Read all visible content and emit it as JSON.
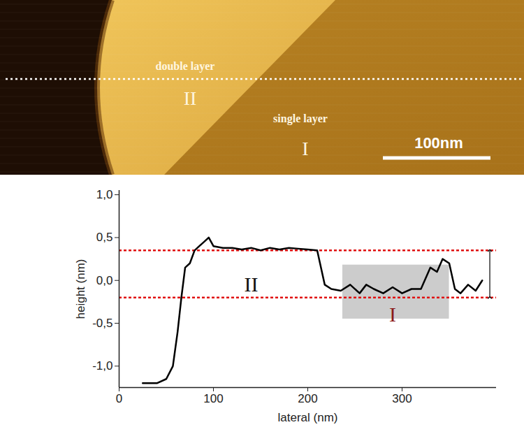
{
  "afm_image": {
    "labels": [
      "double layer",
      "II",
      "single layer",
      "I"
    ],
    "scale_bar": "100nm"
  },
  "chart_data": {
    "type": "line",
    "x": [
      25,
      40,
      50,
      57,
      62,
      66,
      70,
      75,
      80,
      85,
      90,
      95,
      100,
      110,
      120,
      130,
      140,
      150,
      160,
      170,
      180,
      190,
      200,
      210,
      213,
      218,
      225,
      235,
      245,
      255,
      262,
      270,
      280,
      290,
      300,
      310,
      320,
      330,
      337,
      343,
      350,
      356,
      362,
      370,
      378,
      385
    ],
    "values": [
      -1.2,
      -1.2,
      -1.15,
      -1.0,
      -0.6,
      -0.2,
      0.15,
      0.2,
      0.35,
      0.4,
      0.45,
      0.5,
      0.4,
      0.38,
      0.38,
      0.36,
      0.38,
      0.35,
      0.38,
      0.36,
      0.38,
      0.37,
      0.36,
      0.35,
      0.2,
      -0.05,
      -0.1,
      -0.12,
      -0.05,
      -0.15,
      -0.05,
      -0.1,
      -0.15,
      -0.08,
      -0.15,
      -0.1,
      -0.1,
      0.15,
      0.1,
      0.25,
      0.2,
      -0.1,
      -0.15,
      -0.05,
      -0.12,
      0.0
    ],
    "color": "#000000",
    "xlabel": "lateral (nm)",
    "ylabel": "height (nm)",
    "xlim": [
      0,
      400
    ],
    "xticks": [
      0,
      100,
      200,
      300
    ],
    "ylim": [
      -1.25,
      1.05
    ],
    "yticks": [
      {
        "value": -1,
        "label": "-1,0"
      },
      {
        "value": -0.5,
        "label": "-0,5"
      },
      {
        "value": 0,
        "label": "0,0"
      },
      {
        "value": 0.5,
        "label": "0,5"
      },
      {
        "value": 1,
        "label": "1,0"
      }
    ],
    "reference_lines": {
      "values": [
        0.35,
        -0.2
      ],
      "color": "#e01010",
      "line_style": "dashed"
    },
    "shaded_region": {
      "x": [
        237,
        350
      ],
      "y": [
        -0.45,
        0.18
      ],
      "color": "#cccccc"
    },
    "step_arrow": {
      "x": 393,
      "y": [
        -0.2,
        0.35
      ],
      "color": "#000000"
    },
    "annotations": [
      {
        "text": "II",
        "x": 140,
        "y": -0.05,
        "color": "#111111"
      },
      {
        "text": "I",
        "x": 290,
        "y": -0.4,
        "color": "#8b1a1a"
      }
    ]
  }
}
